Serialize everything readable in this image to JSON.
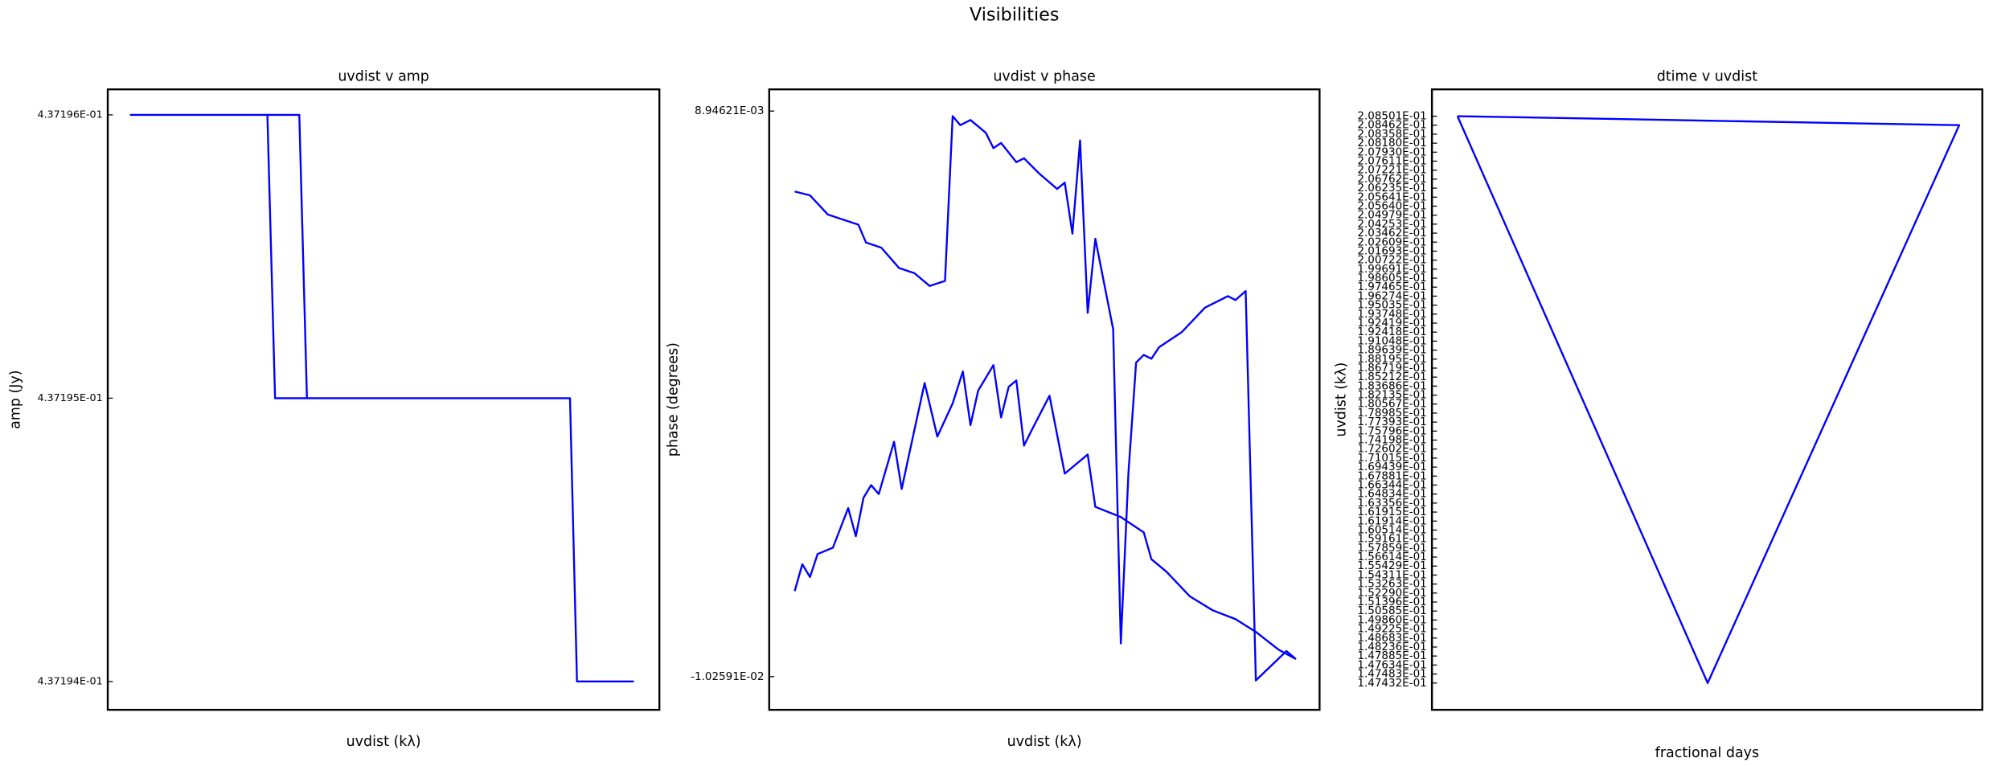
{
  "title": "Visibilities",
  "chart_data": [
    {
      "type": "line",
      "title": "uvdist v amp",
      "x_label": "uvdist (kλ)",
      "y_label": "amp (Jy)",
      "xlim": [
        0.14464,
        0.2116
      ],
      "ylim": [
        0.4371939,
        0.43719609
      ],
      "yticks": [
        {
          "value": 0.437194,
          "label": "4.37194E-01"
        },
        {
          "value": 0.437195,
          "label": "4.37195E-01"
        },
        {
          "value": 0.437196,
          "label": "4.37196E-01"
        }
      ],
      "series": [
        {
          "color": "#0000ff",
          "x": [
            0.208501,
            0.2016,
            0.20075,
            0.16495,
            0.16402,
            0.147432,
            0.16789,
            0.16882
          ],
          "values": [
            0.437194,
            0.437194,
            0.437195,
            0.437195,
            0.437196,
            0.437196,
            0.437196,
            0.437195
          ]
        }
      ]
    },
    {
      "type": "line",
      "title": "uvdist v phase",
      "x_label": "uvdist (kλ)",
      "y_label": "phase (degrees)",
      "xlim": [
        0.14464,
        0.2116
      ],
      "ylim": [
        -0.0113862,
        0.0096832
      ],
      "yticks": [
        {
          "value": -0.0102591,
          "label": "-1.02591E-02"
        },
        {
          "value": 0.00894621,
          "label": "8.94621E-03"
        }
      ],
      "series": [
        {
          "color": "#0000ff",
          "x": [
            0.14774,
            0.1496,
            0.15177,
            0.15363,
            0.15549,
            0.15642,
            0.15828,
            0.16045,
            0.16231,
            0.16417,
            0.16603,
            0.16696,
            0.16789,
            0.16913,
            0.17099,
            0.17192,
            0.17285,
            0.17471,
            0.17564,
            0.1775,
            0.17967,
            0.1806,
            0.18153,
            0.18246,
            0.18339,
            0.18432,
            0.18649,
            0.18742,
            0.18835,
            0.18928,
            0.19021,
            0.19114,
            0.19207,
            0.19486,
            0.19765,
            0.20044,
            0.20137,
            0.20261,
            0.20385,
            0.20757,
            0.20866,
            0.20664,
            0.20385,
            0.20137,
            0.19858,
            0.19579,
            0.193,
            0.19114,
            0.19021,
            0.18742,
            0.18432,
            0.18339,
            0.1806,
            0.17874,
            0.17657,
            0.17564,
            0.17471,
            0.17378,
            0.17285,
            0.17192,
            0.17006,
            0.16913,
            0.1682,
            0.16696,
            0.1651,
            0.16355,
            0.16169,
            0.16076,
            0.15983,
            0.15797,
            0.15704,
            0.15611,
            0.15518,
            0.15425,
            0.15239,
            0.15053,
            0.1496,
            0.14867,
            0.14774
          ],
          "values": [
            0.006215,
            0.006085,
            0.005435,
            0.005261,
            0.005088,
            0.004481,
            0.004308,
            0.003614,
            0.003441,
            0.003007,
            0.00318,
            0.008773,
            0.008469,
            0.008643,
            0.008209,
            0.007689,
            0.007862,
            0.007212,
            0.007342,
            0.006822,
            0.006302,
            0.006518,
            0.004784,
            0.007949,
            0.002097,
            0.004611,
            0.001533,
            -0.009131,
            -0.003322,
            0.000406,
            0.000666,
            0.000536,
            0.000926,
            0.001446,
            0.00227,
            0.00266,
            0.00253,
            0.002834,
            -0.010388,
            -0.009391,
            -0.009651,
            -0.009348,
            -0.008741,
            -0.008307,
            -0.008004,
            -0.007527,
            -0.006704,
            -0.00627,
            -0.00536,
            -0.004839,
            -0.004493,
            -0.002715,
            -0.003365,
            -0.000721,
            -0.001892,
            -0.002412,
            -0.000201,
            -0.000418,
            -0.001458,
            0.000319,
            -0.000548,
            -0.001718,
            0.000103,
            -0.000981,
            -0.002108,
            -0.000288,
            -0.002672,
            -0.003886,
            -0.002282,
            -0.004059,
            -0.003756,
            -0.004189,
            -0.00549,
            -0.004536,
            -0.00588,
            -0.006096,
            -0.006877,
            -0.006443,
            -0.007354
          ]
        }
      ]
    },
    {
      "type": "line",
      "title": "dtime v uvdist",
      "x_label": "fractional days",
      "y_label": "uvdist (kλ)",
      "categorical_y": true,
      "xlim": [
        0.11,
        0.12
      ],
      "ylim": [
        0.147432,
        0.208501
      ],
      "yticks": [
        {
          "value": 0.147432,
          "label": "1.47432E-01"
        },
        {
          "value": 0.147483,
          "label": "1.47483E-01"
        },
        {
          "value": 0.147634,
          "label": "1.47634E-01"
        },
        {
          "value": 0.147885,
          "label": "1.47885E-01"
        },
        {
          "value": 0.148236,
          "label": "1.48236E-01"
        },
        {
          "value": 0.148683,
          "label": "1.48683E-01"
        },
        {
          "value": 0.149225,
          "label": "1.49225E-01"
        },
        {
          "value": 0.14986,
          "label": "1.49860E-01"
        },
        {
          "value": 0.150585,
          "label": "1.50585E-01"
        },
        {
          "value": 0.151396,
          "label": "1.51396E-01"
        },
        {
          "value": 0.15229,
          "label": "1.52290E-01"
        },
        {
          "value": 0.153263,
          "label": "1.53263E-01"
        },
        {
          "value": 0.154311,
          "label": "1.54311E-01"
        },
        {
          "value": 0.155429,
          "label": "1.55429E-01"
        },
        {
          "value": 0.156614,
          "label": "1.56614E-01"
        },
        {
          "value": 0.157859,
          "label": "1.57859E-01"
        },
        {
          "value": 0.159161,
          "label": "1.59161E-01"
        },
        {
          "value": 0.160514,
          "label": "1.60514E-01"
        },
        {
          "value": 0.161914,
          "label": "1.61914E-01"
        },
        {
          "value": 0.161915,
          "label": "1.61915E-01"
        },
        {
          "value": 0.163356,
          "label": "1.63356E-01"
        },
        {
          "value": 0.164834,
          "label": "1.64834E-01"
        },
        {
          "value": 0.166344,
          "label": "1.66344E-01"
        },
        {
          "value": 0.167881,
          "label": "1.67881E-01"
        },
        {
          "value": 0.169439,
          "label": "1.69439E-01"
        },
        {
          "value": 0.171015,
          "label": "1.71015E-01"
        },
        {
          "value": 0.172602,
          "label": "1.72602E-01"
        },
        {
          "value": 0.174198,
          "label": "1.74198E-01"
        },
        {
          "value": 0.175796,
          "label": "1.75796E-01"
        },
        {
          "value": 0.177393,
          "label": "1.77393E-01"
        },
        {
          "value": 0.178985,
          "label": "1.78985E-01"
        },
        {
          "value": 0.180567,
          "label": "1.80567E-01"
        },
        {
          "value": 0.182135,
          "label": "1.82135E-01"
        },
        {
          "value": 0.183686,
          "label": "1.83686E-01"
        },
        {
          "value": 0.185212,
          "label": "1.85212E-01"
        },
        {
          "value": 0.186719,
          "label": "1.86719E-01"
        },
        {
          "value": 0.188195,
          "label": "1.88195E-01"
        },
        {
          "value": 0.189639,
          "label": "1.89639E-01"
        },
        {
          "value": 0.191048,
          "label": "1.91048E-01"
        },
        {
          "value": 0.192418,
          "label": "1.92418E-01"
        },
        {
          "value": 0.192419,
          "label": "1.92419E-01"
        },
        {
          "value": 0.193748,
          "label": "1.93748E-01"
        },
        {
          "value": 0.195035,
          "label": "1.95035E-01"
        },
        {
          "value": 0.196274,
          "label": "1.96274E-01"
        },
        {
          "value": 0.197465,
          "label": "1.97465E-01"
        },
        {
          "value": 0.198605,
          "label": "1.98605E-01"
        },
        {
          "value": 0.199691,
          "label": "1.99691E-01"
        },
        {
          "value": 0.200722,
          "label": "2.00722E-01"
        },
        {
          "value": 0.201693,
          "label": "2.01693E-01"
        },
        {
          "value": 0.202609,
          "label": "2.02609E-01"
        },
        {
          "value": 0.203462,
          "label": "2.03462E-01"
        },
        {
          "value": 0.204253,
          "label": "2.04253E-01"
        },
        {
          "value": 0.204979,
          "label": "2.04979E-01"
        },
        {
          "value": 0.20564,
          "label": "2.05640E-01"
        },
        {
          "value": 0.205641,
          "label": "2.05641E-01"
        },
        {
          "value": 0.206235,
          "label": "2.06235E-01"
        },
        {
          "value": 0.206762,
          "label": "2.06762E-01"
        },
        {
          "value": 0.207221,
          "label": "2.07221E-01"
        },
        {
          "value": 0.207611,
          "label": "2.07611E-01"
        },
        {
          "value": 0.20793,
          "label": "2.07930E-01"
        },
        {
          "value": 0.20818,
          "label": "2.08180E-01"
        },
        {
          "value": 0.208358,
          "label": "2.08358E-01"
        },
        {
          "value": 0.208462,
          "label": "2.08462E-01"
        },
        {
          "value": 0.208501,
          "label": "2.08501E-01"
        }
      ],
      "series": [
        {
          "color": "#0000ff",
          "x": [
            0.110464,
            0.11958,
            0.11501,
            0.110464
          ],
          "values": [
            0.208501,
            0.208462,
            0.147432,
            0.208501
          ]
        }
      ]
    }
  ]
}
